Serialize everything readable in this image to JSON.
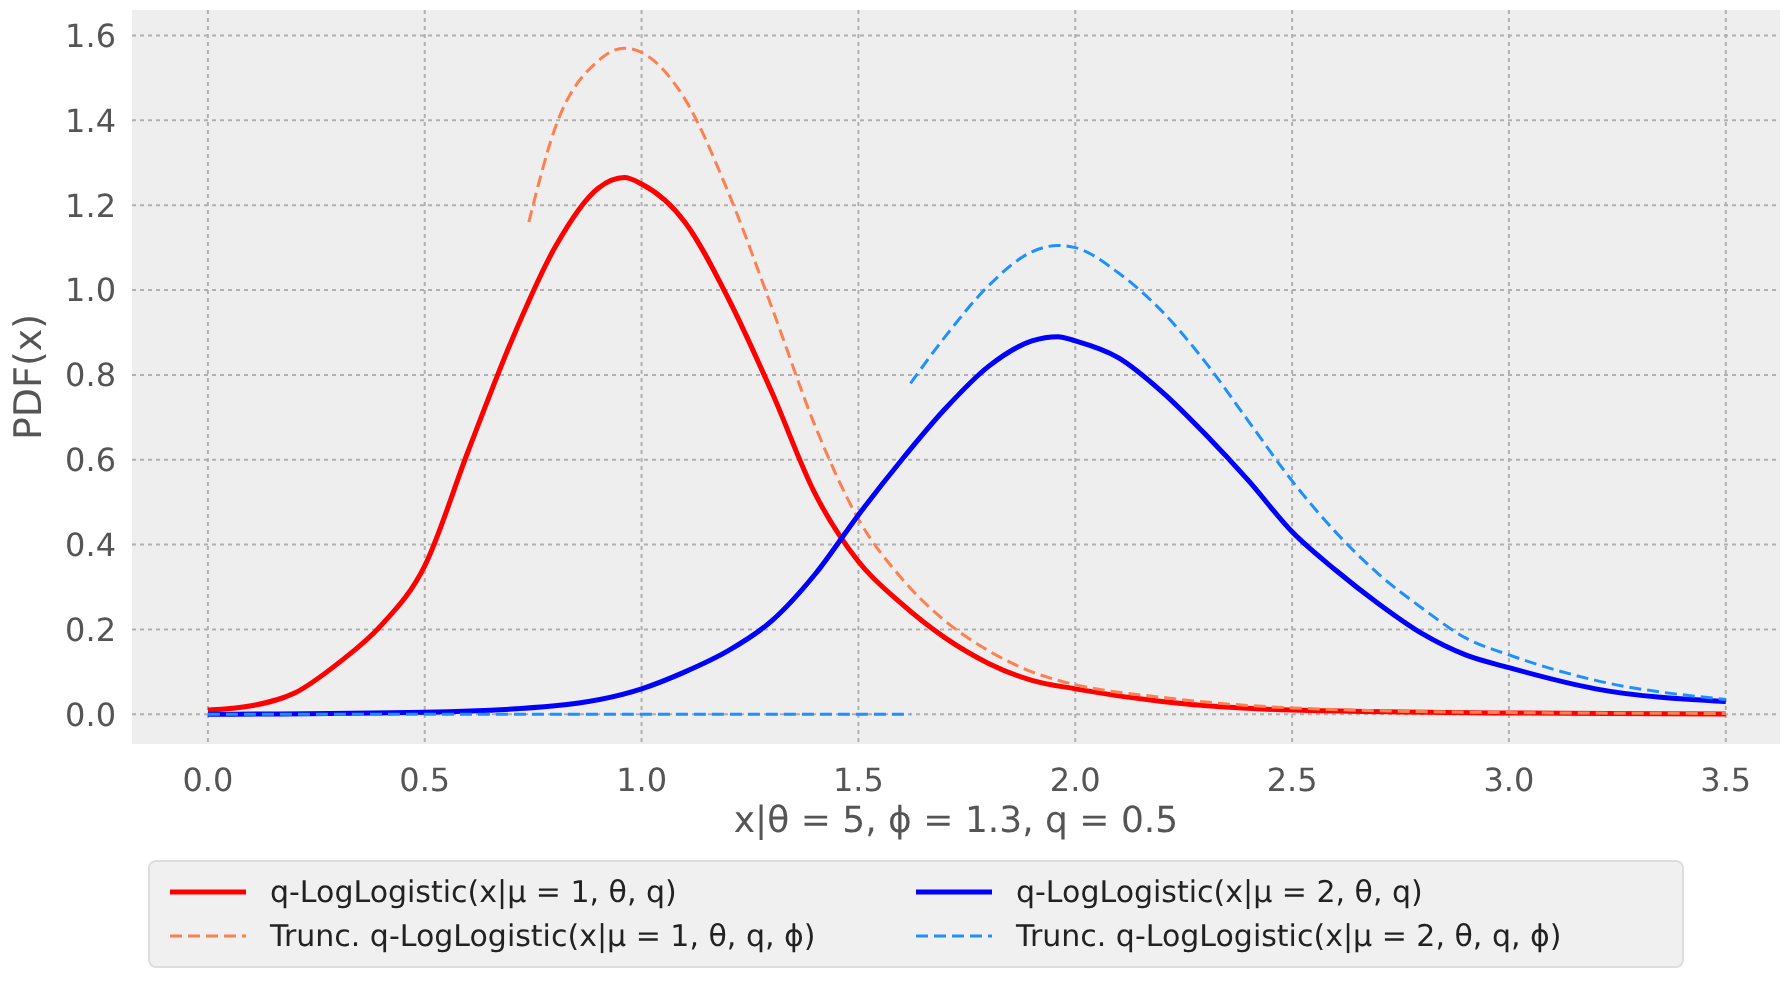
{
  "chart_data": {
    "type": "line",
    "xlabel": "x|θ = 5, ϕ = 1.3, q = 0.5",
    "ylabel": "PDF(x)",
    "xlim": [
      -0.175,
      3.625
    ],
    "ylim": [
      -0.07,
      1.66
    ],
    "xticks": [
      {
        "value": 0,
        "label": "0.0"
      },
      {
        "value": 0.5,
        "label": "0.5"
      },
      {
        "value": 1,
        "label": "1.0"
      },
      {
        "value": 1.5,
        "label": "1.5"
      },
      {
        "value": 2,
        "label": "2.0"
      },
      {
        "value": 2.5,
        "label": "2.5"
      },
      {
        "value": 3,
        "label": "3.0"
      },
      {
        "value": 3.5,
        "label": "3.5"
      }
    ],
    "yticks": [
      {
        "value": 0,
        "label": "0.0"
      },
      {
        "value": 0.2,
        "label": "0.2"
      },
      {
        "value": 0.4,
        "label": "0.4"
      },
      {
        "value": 0.6,
        "label": "0.6"
      },
      {
        "value": 0.8,
        "label": "0.8"
      },
      {
        "value": 1,
        "label": "1.0"
      },
      {
        "value": 1.2,
        "label": "1.2"
      },
      {
        "value": 1.4,
        "label": "1.4"
      },
      {
        "value": 1.6,
        "label": "1.6"
      }
    ],
    "grid": true,
    "legend": "bottom",
    "marker": "none",
    "series": [
      {
        "name": "q-LogLogistic(x|μ = 1, θ, q)",
        "color": "#ff0000",
        "line_style": "solid",
        "x": [
          0,
          0.1,
          0.2,
          0.3,
          0.4,
          0.5,
          0.6,
          0.7,
          0.8,
          0.9,
          0.96,
          1.0,
          1.1,
          1.2,
          1.3,
          1.4,
          1.5,
          1.6,
          1.7,
          1.8,
          1.9,
          2.0,
          2.2,
          2.5,
          3.0,
          3.5
        ],
        "values": [
          0.01,
          0.02,
          0.05,
          0.12,
          0.21,
          0.35,
          0.62,
          0.88,
          1.1,
          1.24,
          1.265,
          1.25,
          1.16,
          0.98,
          0.76,
          0.52,
          0.36,
          0.26,
          0.18,
          0.12,
          0.08,
          0.06,
          0.03,
          0.01,
          0.003,
          0.001
        ]
      },
      {
        "name": "Trunc. q-LogLogistic(x|μ = 1, θ, q, ϕ)",
        "color": "#ff7f50",
        "line_style": "dashed",
        "x": [
          0.74,
          0.8,
          0.9,
          0.96,
          1.0,
          1.1,
          1.2,
          1.3,
          1.4,
          1.5,
          1.6,
          1.7,
          1.8,
          1.9,
          2.0,
          2.2,
          2.5,
          3.0,
          3.5
        ],
        "values": [
          1.16,
          1.38,
          1.54,
          1.57,
          1.56,
          1.45,
          1.23,
          0.96,
          0.68,
          0.46,
          0.32,
          0.22,
          0.15,
          0.1,
          0.07,
          0.04,
          0.015,
          0.004,
          0.002
        ]
      },
      {
        "name": "q-LogLogistic(x|μ = 2, θ, q)",
        "color": "#0000ff",
        "line_style": "solid",
        "x": [
          0,
          0.5,
          0.8,
          1.0,
          1.1,
          1.2,
          1.3,
          1.4,
          1.5,
          1.6,
          1.7,
          1.8,
          1.9,
          1.96,
          2.0,
          2.1,
          2.2,
          2.3,
          2.4,
          2.5,
          2.6,
          2.7,
          2.8,
          2.9,
          3.0,
          3.2,
          3.5
        ],
        "values": [
          0,
          0.005,
          0.02,
          0.06,
          0.1,
          0.15,
          0.22,
          0.33,
          0.47,
          0.6,
          0.72,
          0.82,
          0.88,
          0.89,
          0.88,
          0.84,
          0.76,
          0.66,
          0.55,
          0.43,
          0.34,
          0.26,
          0.19,
          0.14,
          0.11,
          0.06,
          0.03
        ]
      },
      {
        "color": "#1e90ff",
        "line_style": "dashed",
        "x": [
          0,
          1.62
        ],
        "values": [
          0,
          0
        ]
      },
      {
        "name": "Trunc. q-LogLogistic(x|μ = 2, θ, q, ϕ)",
        "color": "#1e90ff",
        "line_style": "dashed",
        "x": [
          1.62,
          1.7,
          1.8,
          1.9,
          1.96,
          2.0,
          2.1,
          2.2,
          2.3,
          2.4,
          2.5,
          2.6,
          2.7,
          2.8,
          2.9,
          3.0,
          3.2,
          3.5
        ],
        "values": [
          0.78,
          0.89,
          1.01,
          1.09,
          1.105,
          1.1,
          1.04,
          0.95,
          0.83,
          0.69,
          0.55,
          0.43,
          0.33,
          0.25,
          0.18,
          0.14,
          0.08,
          0.035
        ]
      }
    ]
  }
}
